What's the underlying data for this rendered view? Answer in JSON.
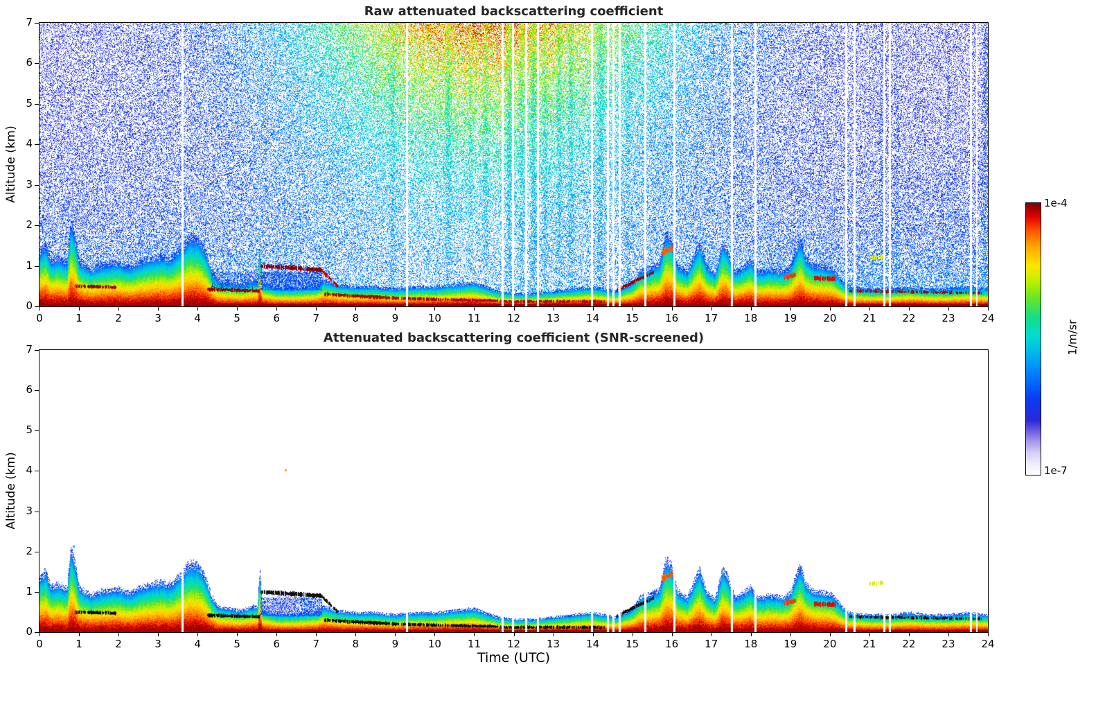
{
  "chart_data": [
    {
      "type": "heatmap",
      "title": "Raw attenuated backscattering coefficient",
      "xlabel": "",
      "ylabel": "Altitude (km)",
      "xlim": [
        0,
        24
      ],
      "ylim": [
        0,
        7
      ],
      "x_ticks": [
        0,
        1,
        2,
        3,
        4,
        5,
        6,
        7,
        8,
        9,
        10,
        11,
        12,
        13,
        14,
        15,
        16,
        17,
        18,
        19,
        20,
        21,
        22,
        23,
        24
      ],
      "y_ticks": [
        0,
        1,
        2,
        3,
        4,
        5,
        6,
        7
      ],
      "noise": true,
      "legend_position": "right-colorbar",
      "grid": false
    },
    {
      "type": "heatmap",
      "title": "Attenuated backscattering coefficient (SNR-screened)",
      "xlabel": "Time (UTC)",
      "ylabel": "Altitude (km)",
      "xlim": [
        0,
        24
      ],
      "ylim": [
        0,
        7
      ],
      "x_ticks": [
        0,
        1,
        2,
        3,
        4,
        5,
        6,
        7,
        8,
        9,
        10,
        11,
        12,
        13,
        14,
        15,
        16,
        17,
        18,
        19,
        20,
        21,
        22,
        23,
        24
      ],
      "y_ticks": [
        0,
        1,
        2,
        3,
        4,
        5,
        6,
        7
      ],
      "noise": false,
      "legend_position": "right-colorbar",
      "grid": false
    }
  ],
  "colorbar": {
    "label": "1/m/sr",
    "max_label": "1e-4",
    "min_label": "1e-7",
    "stops": [
      [
        0.0,
        "#ffffff"
      ],
      [
        0.04,
        "#efedfb"
      ],
      [
        0.08,
        "#d8d0f6"
      ],
      [
        0.12,
        "#ab9bec"
      ],
      [
        0.16,
        "#6f5fe0"
      ],
      [
        0.2,
        "#2b28d8"
      ],
      [
        0.28,
        "#0b3cf0"
      ],
      [
        0.36,
        "#0077ff"
      ],
      [
        0.44,
        "#00b0f0"
      ],
      [
        0.51,
        "#00dcd0"
      ],
      [
        0.58,
        "#16dd88"
      ],
      [
        0.65,
        "#66e628"
      ],
      [
        0.71,
        "#bdf000"
      ],
      [
        0.77,
        "#ffe600"
      ],
      [
        0.84,
        "#ffa800"
      ],
      [
        0.9,
        "#ff5200"
      ],
      [
        0.95,
        "#e20000"
      ],
      [
        1.0,
        "#7e0000"
      ]
    ]
  },
  "field": {
    "boundary_layer": {
      "points": [
        [
          0,
          1.25
        ],
        [
          0.15,
          1.4
        ],
        [
          0.3,
          1.05
        ],
        [
          0.5,
          1.1
        ],
        [
          0.7,
          1.0
        ],
        [
          0.8,
          1.95
        ],
        [
          0.9,
          1.6
        ],
        [
          1.0,
          1.05
        ],
        [
          1.3,
          0.85
        ],
        [
          1.6,
          0.95
        ],
        [
          2.0,
          1.0
        ],
        [
          2.3,
          0.9
        ],
        [
          2.6,
          1.05
        ],
        [
          3.0,
          1.15
        ],
        [
          3.3,
          1.1
        ],
        [
          3.6,
          1.35
        ],
        [
          3.8,
          1.6
        ],
        [
          4.0,
          1.55
        ],
        [
          4.2,
          1.3
        ],
        [
          4.35,
          0.85
        ],
        [
          4.5,
          0.6
        ],
        [
          4.8,
          0.55
        ],
        [
          5.1,
          0.5
        ],
        [
          5.4,
          0.6
        ],
        [
          5.52,
          0.6
        ],
        [
          5.58,
          1.45
        ],
        [
          5.64,
          0.55
        ],
        [
          6.0,
          0.42
        ],
        [
          6.5,
          0.42
        ],
        [
          7.0,
          0.48
        ],
        [
          7.2,
          0.6
        ],
        [
          7.5,
          0.5
        ],
        [
          8.0,
          0.45
        ],
        [
          8.5,
          0.45
        ],
        [
          9.0,
          0.4
        ],
        [
          9.5,
          0.45
        ],
        [
          10.0,
          0.45
        ],
        [
          10.5,
          0.5
        ],
        [
          11.0,
          0.55
        ],
        [
          11.3,
          0.45
        ],
        [
          11.6,
          0.35
        ],
        [
          12.0,
          0.3
        ],
        [
          12.5,
          0.3
        ],
        [
          13.0,
          0.35
        ],
        [
          13.5,
          0.4
        ],
        [
          14.0,
          0.45
        ],
        [
          14.3,
          0.4
        ],
        [
          14.6,
          0.35
        ],
        [
          15.0,
          0.55
        ],
        [
          15.2,
          0.8
        ],
        [
          15.5,
          0.9
        ],
        [
          15.7,
          1.0
        ],
        [
          15.85,
          1.65
        ],
        [
          16.0,
          1.55
        ],
        [
          16.15,
          0.95
        ],
        [
          16.4,
          0.8
        ],
        [
          16.7,
          1.45
        ],
        [
          16.9,
          0.9
        ],
        [
          17.1,
          0.75
        ],
        [
          17.3,
          1.5
        ],
        [
          17.45,
          1.2
        ],
        [
          17.6,
          0.8
        ],
        [
          17.8,
          0.9
        ],
        [
          18.0,
          1.05
        ],
        [
          18.2,
          0.8
        ],
        [
          18.5,
          0.85
        ],
        [
          18.8,
          0.8
        ],
        [
          19.0,
          0.9
        ],
        [
          19.25,
          1.55
        ],
        [
          19.4,
          1.1
        ],
        [
          19.6,
          0.95
        ],
        [
          19.9,
          0.9
        ],
        [
          20.1,
          0.85
        ],
        [
          20.3,
          0.6
        ],
        [
          20.5,
          0.45
        ],
        [
          21.0,
          0.4
        ],
        [
          21.5,
          0.4
        ],
        [
          22.0,
          0.45
        ],
        [
          22.5,
          0.4
        ],
        [
          23.0,
          0.4
        ],
        [
          23.5,
          0.45
        ],
        [
          24,
          0.4
        ]
      ]
    },
    "strong_layers": [
      {
        "t0": 0.9,
        "t1": 1.95,
        "h0": 0.5,
        "h1": 0.47,
        "hw": 0.035,
        "u": 0.97,
        "bottom": "black",
        "gap": 0.1
      },
      {
        "t0": 4.25,
        "t1": 5.58,
        "h0": 0.42,
        "h1": 0.38,
        "hw": 0.035,
        "u": 0.97,
        "bottom": "black",
        "gap": 0.05
      },
      {
        "t0": 5.6,
        "t1": 7.15,
        "h0": 1.0,
        "h1": 0.9,
        "hw": 0.045,
        "u": 0.98,
        "bottom": "black",
        "gap": 0.05
      },
      {
        "t0": 7.15,
        "t1": 7.55,
        "h0": 0.88,
        "h1": 0.5,
        "hw": 0.035,
        "u": 0.95,
        "bottom": "black",
        "gap": 0.1
      },
      {
        "t0": 7.2,
        "t1": 9.0,
        "h0": 0.3,
        "h1": 0.2,
        "hw": 0.035,
        "u": 0.96,
        "bottom": "black",
        "gap": 0.1
      },
      {
        "t0": 9.0,
        "t1": 11.6,
        "h0": 0.2,
        "h1": 0.14,
        "hw": 0.03,
        "u": 0.96,
        "bottom": "black",
        "gap": 0.12
      },
      {
        "t0": 11.6,
        "t1": 14.3,
        "h0": 0.12,
        "h1": 0.12,
        "hw": 0.03,
        "u": 0.96,
        "bottom": "black",
        "gap": 0.12
      },
      {
        "t0": 14.6,
        "t1": 15.55,
        "h0": 0.4,
        "h1": 0.85,
        "hw": 0.035,
        "u": 0.97,
        "bottom": "black",
        "gap": 0.1
      },
      {
        "t0": 15.75,
        "t1": 16.02,
        "h0": 1.32,
        "h1": 1.44,
        "hw": 0.06,
        "u": 0.88,
        "bottom": "color",
        "gap": 0.1
      },
      {
        "t0": 18.85,
        "t1": 19.15,
        "h0": 0.72,
        "h1": 0.78,
        "hw": 0.05,
        "u": 0.9,
        "bottom": "color",
        "gap": 0.15
      },
      {
        "t0": 19.6,
        "t1": 20.15,
        "h0": 0.7,
        "h1": 0.68,
        "hw": 0.055,
        "u": 0.93,
        "bottom": "color",
        "gap": 0.1
      },
      {
        "t0": 20.5,
        "t1": 23.85,
        "h0": 0.38,
        "h1": 0.33,
        "hw": 0.03,
        "u": 0.96,
        "bottom": "black",
        "gap": 0.3
      },
      {
        "t0": 21.0,
        "t1": 21.35,
        "h0": 1.2,
        "h1": 1.22,
        "hw": 0.04,
        "u": 0.72,
        "bottom": "color",
        "gap": 0.45
      }
    ],
    "gaps": [
      3.62,
      9.3,
      11.72,
      11.98,
      12.32,
      12.62,
      13.98,
      14.38,
      14.53,
      14.68,
      15.33,
      16.06,
      17.52,
      18.12,
      20.42,
      20.62,
      21.38,
      21.52,
      23.57,
      23.72
    ],
    "gap_width_h": 0.05,
    "streaks": [
      {
        "t": 8.95,
        "w": 0.1,
        "s": 0.5
      },
      {
        "t": 10.35,
        "w": 0.12,
        "s": 0.6
      },
      {
        "t": 10.9,
        "w": 0.08,
        "s": 0.4
      },
      {
        "t": 11.3,
        "w": 0.1,
        "s": 0.5
      },
      {
        "t": 11.9,
        "w": 0.12,
        "s": 0.7
      },
      {
        "t": 12.2,
        "w": 0.1,
        "s": 0.6
      },
      {
        "t": 12.5,
        "w": 0.12,
        "s": 0.7
      },
      {
        "t": 12.8,
        "w": 0.1,
        "s": 0.5
      },
      {
        "t": 13.15,
        "w": 0.1,
        "s": 0.6
      },
      {
        "t": 13.45,
        "w": 0.1,
        "s": 0.5
      },
      {
        "t": 14.2,
        "w": 0.12,
        "s": 0.6
      },
      {
        "t": 14.9,
        "w": 0.08,
        "s": 0.4
      },
      {
        "t": 21.35,
        "w": 0.1,
        "s": 0.4
      },
      {
        "t": 21.7,
        "w": 0.08,
        "s": 0.35
      },
      {
        "t": 23.0,
        "w": 0.06,
        "s": 0.3
      },
      {
        "t": 23.93,
        "w": 0.1,
        "s": 0.5
      }
    ],
    "speckle_regions": [
      {
        "t0": 4.35,
        "t1": 5.6,
        "a0": 0.45,
        "a1": 0.85,
        "density": 0.3,
        "u": 0.24,
        "panels": "top"
      },
      {
        "t0": 5.6,
        "t1": 7.15,
        "a0": 0.4,
        "a1": 0.86,
        "density": 0.55,
        "u": 0.26,
        "panels": "both"
      },
      {
        "t0": 5.75,
        "t1": 6.6,
        "a0": 0.45,
        "a1": 1.0,
        "density": 0.3,
        "u": 0.07,
        "panels": "bottom"
      }
    ],
    "isolated_dots": [
      {
        "t": 6.2,
        "a": 4.05,
        "u": 0.85
      },
      {
        "t": 0.85,
        "a": 2.15,
        "u": 0.45
      }
    ],
    "noise_model": {
      "day_center": 11.3,
      "day_sigma": 3.6
    }
  }
}
